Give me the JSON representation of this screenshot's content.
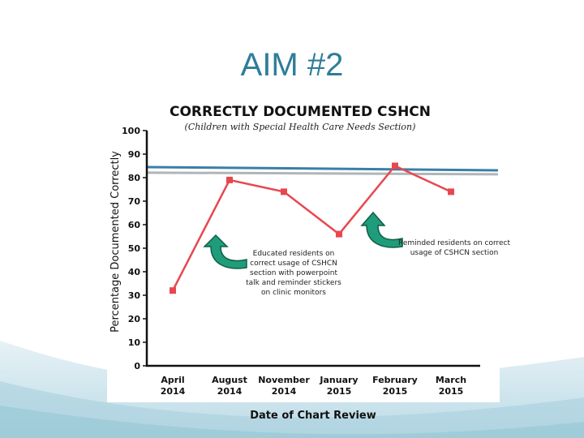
{
  "slide": {
    "title": "AIM #2",
    "colors": {
      "title": "#2e7d9a",
      "background_wave": "#cfe6ee"
    }
  },
  "chart_data": {
    "type": "line",
    "title": "CORRECTLY DOCUMENTED CSHCN",
    "subtitle": "(Children with Special Health Care Needs Section)",
    "ylabel": "Percentage Documented Correctly",
    "xlabel": "Date of Chart Review",
    "ylim": [
      0,
      100
    ],
    "yticks": [
      0,
      10,
      20,
      30,
      40,
      50,
      60,
      70,
      80,
      90,
      100
    ],
    "categories": [
      [
        "April",
        "2014"
      ],
      [
        "August",
        "2014"
      ],
      [
        "November",
        "2014"
      ],
      [
        "January",
        "2015"
      ],
      [
        "February",
        "2015"
      ],
      [
        "March",
        "2015"
      ]
    ],
    "series": [
      {
        "values": [
          32,
          79,
          74,
          56,
          85,
          74
        ],
        "color": "#e8474f",
        "marker": "square"
      }
    ],
    "reference_lines": [
      {
        "value": 83.5,
        "color": "#b0b5b8"
      },
      {
        "value": 84.5,
        "color": "#3a7fa6"
      }
    ],
    "grid": false,
    "annotations": [
      {
        "lines": [
          "Educated residents on",
          "correct usage of CSHCN",
          "section with powerpoint",
          "talk and reminder stickers",
          "on clinic monitors"
        ],
        "icon": "curved-arrow-icon",
        "arrow_color": "#1f9c7a"
      },
      {
        "lines": [
          "Reminded residents on correct",
          "usage of CSHCN section"
        ],
        "icon": "curved-arrow-icon",
        "arrow_color": "#1f9c7a"
      }
    ]
  }
}
